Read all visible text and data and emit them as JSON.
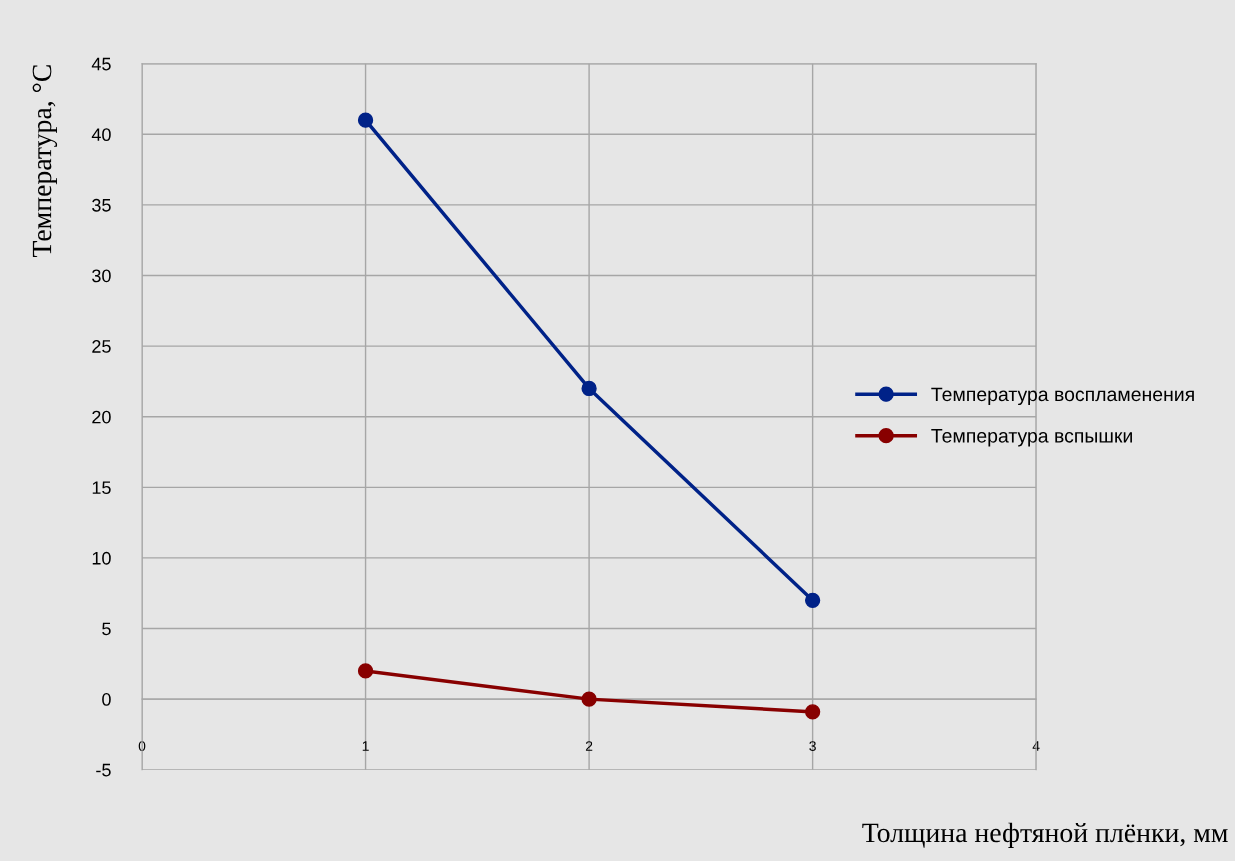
{
  "chart_data": {
    "type": "line",
    "xlabel": "Толщина нефтяной плёнки, мм",
    "ylabel": "Температура, °C",
    "x": [
      1,
      2,
      3
    ],
    "series": [
      {
        "name": "Температура воспламенения",
        "color": "#002288",
        "values": [
          41,
          22,
          7
        ]
      },
      {
        "name": "Температура вспышки",
        "color": "#880000",
        "values": [
          2,
          0,
          -0.9
        ]
      }
    ],
    "xlim": [
      0,
      4
    ],
    "xticks": [
      0,
      1,
      2,
      3,
      4
    ],
    "ylim": [
      -5,
      45
    ],
    "yticks": [
      -5,
      0,
      5,
      10,
      15,
      20,
      25,
      30,
      35,
      40,
      45
    ],
    "grid": true,
    "legend": "right",
    "marker": "circle",
    "line_style": "solid"
  }
}
